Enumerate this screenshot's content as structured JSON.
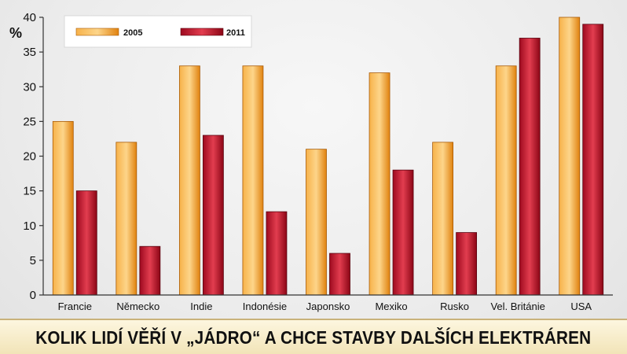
{
  "chart_data": {
    "type": "bar",
    "title": "KOLIK LIDÍ VĚŘÍ V „JÁDRO“ A CHCE STAVBY DALŠÍCH ELEKTRÁREN",
    "ylabel": "%",
    "xlabel": "",
    "ylim": [
      0,
      40
    ],
    "yticks": [
      "0",
      "5",
      "10",
      "15",
      "20",
      "25",
      "30",
      "35",
      "40"
    ],
    "grid": false,
    "legend_position": "top-left",
    "categories": [
      "Francie",
      "Německo",
      "Indie",
      "Indonésie",
      "Japonsko",
      "Mexiko",
      "Rusko",
      "Vel. Británie",
      "USA"
    ],
    "series": [
      {
        "name": "2005",
        "color": "#f39a1e",
        "values": [
          25,
          22,
          33,
          33,
          21,
          32,
          22,
          33,
          40
        ]
      },
      {
        "name": "2011",
        "color": "#c8102e",
        "values": [
          15,
          7,
          23,
          12,
          6,
          18,
          9,
          37,
          39
        ]
      }
    ]
  }
}
